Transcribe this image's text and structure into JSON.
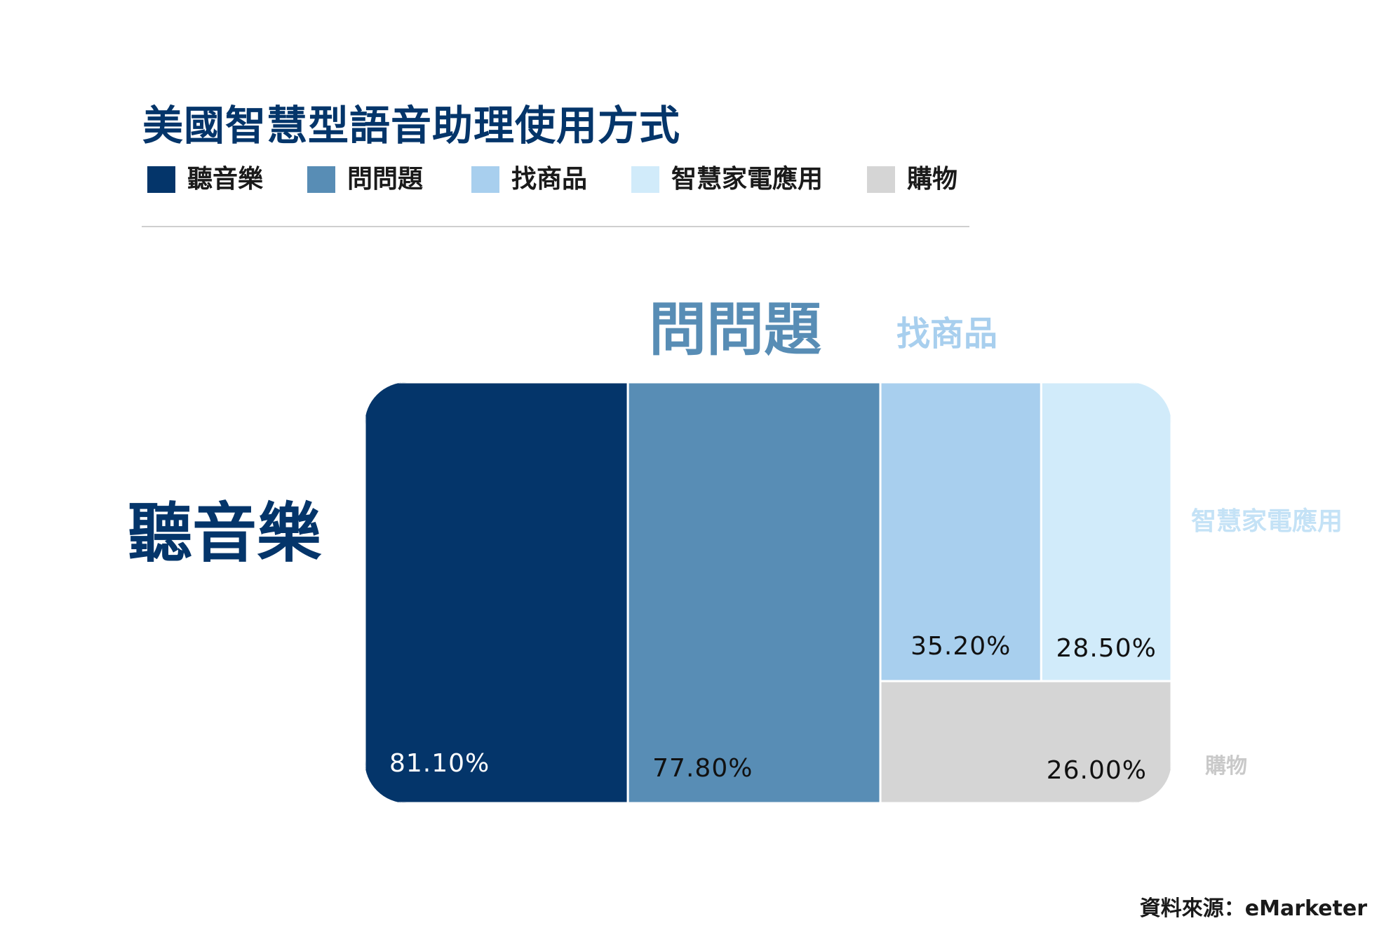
{
  "title": "美國智慧型語音助理使用方式",
  "source": "資料來源：eMarketer",
  "chart_data": {
    "type": "treemap",
    "title": "美國智慧型語音助理使用方式",
    "unit": "%",
    "series": [
      {
        "name": "聽音樂",
        "value": 81.1,
        "label": "81.10%",
        "color": "#04356a",
        "text_color": "#ffffff",
        "callout_color": "#04356a"
      },
      {
        "name": "問問題",
        "value": 77.8,
        "label": "77.80%",
        "color": "#588db5",
        "text_color": "#111111",
        "callout_color": "#588db5"
      },
      {
        "name": "找商品",
        "value": 35.2,
        "label": "35.20%",
        "color": "#a8cfee",
        "text_color": "#111111",
        "callout_color": "#a8cfee"
      },
      {
        "name": "智慧家電應用",
        "value": 28.5,
        "label": "28.50%",
        "color": "#d1ebfa",
        "text_color": "#111111",
        "callout_color": "#c4e2f6"
      },
      {
        "name": "購物",
        "value": 26.0,
        "label": "26.00%",
        "color": "#d5d5d5",
        "text_color": "#111111",
        "callout_color": "#c9c9c9"
      }
    ],
    "legend_position": "top-left",
    "grid": false
  }
}
